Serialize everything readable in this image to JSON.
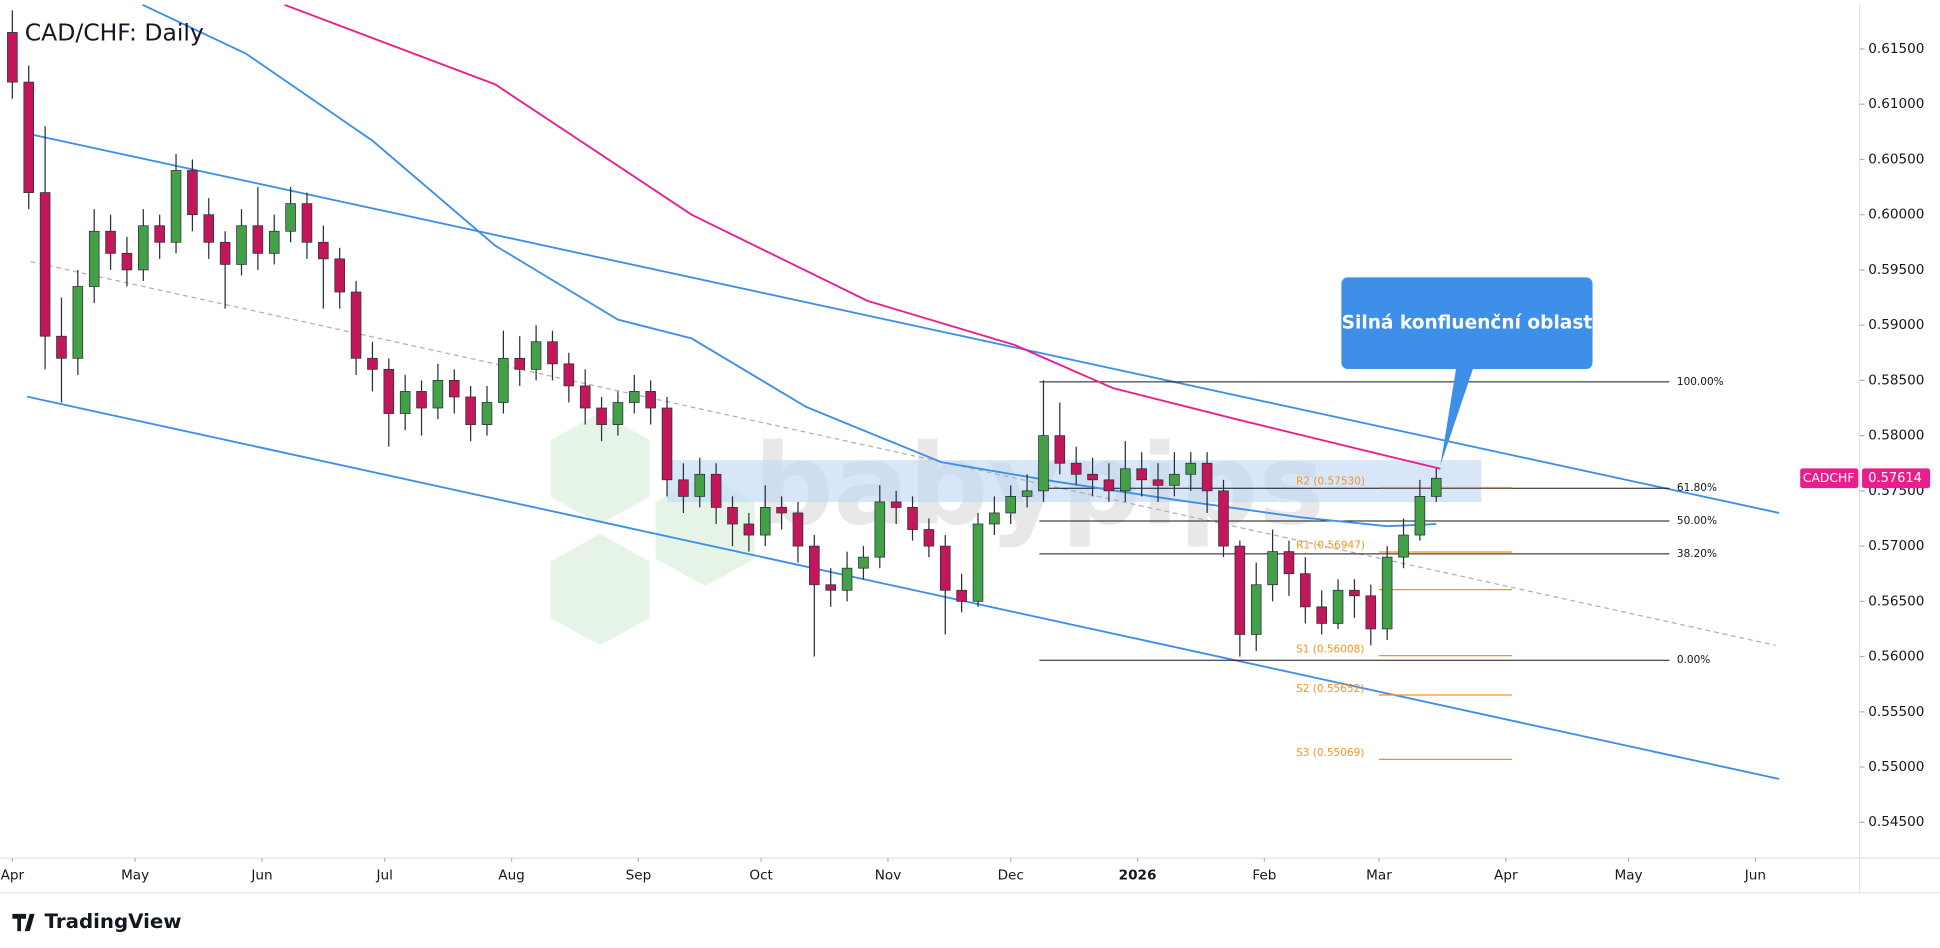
{
  "chart_data": {
    "type": "candlestick",
    "title": "CAD/CHF: Daily",
    "symbol": "CADCHF",
    "last_price": {
      "value": 0.57614,
      "label": "0.57614"
    },
    "x": [
      0,
      4,
      8,
      12,
      16,
      20,
      24,
      28,
      32,
      36,
      40,
      44,
      48,
      52,
      56,
      60,
      64,
      68,
      72,
      76,
      80,
      84,
      88,
      92,
      96,
      100,
      104,
      108,
      112,
      116,
      120,
      124,
      128,
      132,
      136,
      140,
      144,
      148,
      152,
      156,
      160,
      164,
      168,
      172,
      176,
      180,
      184,
      188,
      192,
      196,
      200,
      204,
      208,
      212,
      216,
      220,
      224,
      228,
      232,
      236,
      240,
      244,
      248,
      252,
      256,
      260,
      264,
      268,
      272,
      276,
      280,
      284,
      288,
      292,
      296,
      300,
      304,
      308,
      312,
      316,
      320,
      324,
      328,
      332,
      336,
      340,
      344,
      348
    ],
    "open": [
      0.6165,
      0.612,
      0.602,
      0.589,
      0.587,
      0.5935,
      0.5985,
      0.5965,
      0.595,
      0.599,
      0.5975,
      0.604,
      0.6,
      0.5975,
      0.5955,
      0.599,
      0.5965,
      0.5985,
      0.601,
      0.5975,
      0.596,
      0.593,
      0.587,
      0.586,
      0.582,
      0.584,
      0.5825,
      0.585,
      0.5835,
      0.581,
      0.583,
      0.587,
      0.586,
      0.5885,
      0.5865,
      0.5845,
      0.5825,
      0.581,
      0.583,
      0.584,
      0.5825,
      0.576,
      0.5745,
      0.5765,
      0.5735,
      0.572,
      0.571,
      0.5735,
      0.573,
      0.57,
      0.5665,
      0.566,
      0.568,
      0.569,
      0.574,
      0.5735,
      0.5715,
      0.57,
      0.566,
      0.565,
      0.572,
      0.573,
      0.5745,
      0.575,
      0.58,
      0.5775,
      0.5765,
      0.576,
      0.575,
      0.577,
      0.576,
      0.5755,
      0.5765,
      0.5775,
      0.575,
      0.57,
      0.562,
      0.5665,
      0.5695,
      0.5675,
      0.5645,
      0.563,
      0.566,
      0.5655,
      0.5625,
      0.569,
      0.571,
      0.5745
    ],
    "high": [
      0.6185,
      0.6135,
      0.608,
      0.5925,
      0.595,
      0.6005,
      0.6,
      0.598,
      0.6005,
      0.6,
      0.6055,
      0.605,
      0.6015,
      0.5985,
      0.6005,
      0.6025,
      0.6,
      0.6025,
      0.602,
      0.599,
      0.597,
      0.594,
      0.5885,
      0.587,
      0.5855,
      0.585,
      0.5865,
      0.586,
      0.5845,
      0.5845,
      0.5895,
      0.589,
      0.59,
      0.5895,
      0.5875,
      0.586,
      0.5835,
      0.584,
      0.5855,
      0.585,
      0.5835,
      0.5775,
      0.578,
      0.5775,
      0.5745,
      0.573,
      0.5755,
      0.5745,
      0.574,
      0.571,
      0.568,
      0.5695,
      0.57,
      0.5755,
      0.575,
      0.5745,
      0.5725,
      0.571,
      0.5675,
      0.573,
      0.5745,
      0.5755,
      0.5765,
      0.585,
      0.583,
      0.579,
      0.578,
      0.5775,
      0.5795,
      0.5785,
      0.5775,
      0.5785,
      0.5785,
      0.5785,
      0.576,
      0.5705,
      0.5685,
      0.5715,
      0.5705,
      0.569,
      0.566,
      0.567,
      0.567,
      0.5665,
      0.57,
      0.5725,
      0.576,
      0.577
    ],
    "low": [
      0.6105,
      0.6005,
      0.586,
      0.583,
      0.5855,
      0.592,
      0.595,
      0.5935,
      0.594,
      0.596,
      0.5965,
      0.5985,
      0.596,
      0.5915,
      0.5945,
      0.595,
      0.5955,
      0.5975,
      0.596,
      0.5915,
      0.5915,
      0.5855,
      0.584,
      0.579,
      0.5805,
      0.58,
      0.5815,
      0.582,
      0.5795,
      0.58,
      0.582,
      0.5845,
      0.585,
      0.585,
      0.583,
      0.581,
      0.5795,
      0.58,
      0.582,
      0.581,
      0.5745,
      0.573,
      0.5735,
      0.572,
      0.57,
      0.5695,
      0.57,
      0.5715,
      0.5685,
      0.56,
      0.5645,
      0.565,
      0.567,
      0.568,
      0.572,
      0.5705,
      0.569,
      0.562,
      0.564,
      0.5645,
      0.571,
      0.572,
      0.5735,
      0.574,
      0.5765,
      0.5755,
      0.5745,
      0.574,
      0.574,
      0.5745,
      0.574,
      0.5745,
      0.575,
      0.573,
      0.569,
      0.56,
      0.5605,
      0.565,
      0.5655,
      0.563,
      0.562,
      0.5625,
      0.5635,
      0.561,
      0.5615,
      0.568,
      0.5705,
      0.574
    ],
    "close": [
      0.612,
      0.602,
      0.589,
      0.587,
      0.5935,
      0.5985,
      0.5965,
      0.595,
      0.599,
      0.5975,
      0.604,
      0.6,
      0.5975,
      0.5955,
      0.599,
      0.5965,
      0.5985,
      0.601,
      0.5975,
      0.596,
      0.593,
      0.587,
      0.586,
      0.582,
      0.584,
      0.5825,
      0.585,
      0.5835,
      0.581,
      0.583,
      0.587,
      0.586,
      0.5885,
      0.5865,
      0.5845,
      0.5825,
      0.581,
      0.583,
      0.584,
      0.5825,
      0.576,
      0.5745,
      0.5765,
      0.5735,
      0.572,
      0.571,
      0.5735,
      0.573,
      0.57,
      0.5665,
      0.566,
      0.568,
      0.569,
      0.574,
      0.5735,
      0.5715,
      0.57,
      0.566,
      0.565,
      0.572,
      0.573,
      0.5745,
      0.575,
      0.58,
      0.5775,
      0.5765,
      0.576,
      0.575,
      0.577,
      0.576,
      0.5755,
      0.5765,
      0.5775,
      0.575,
      0.57,
      0.562,
      0.5665,
      0.5695,
      0.5675,
      0.5645,
      0.563,
      0.566,
      0.5655,
      0.5625,
      0.569,
      0.571,
      0.5745,
      0.57614
    ],
    "up_color": "#43a047",
    "down_color": "#c2185b",
    "xlim": [
      -3.024,
      451.46
    ],
    "ylim": [
      0.54175,
      0.61903
    ],
    "yticks": [
      {
        "value": 0.545,
        "label": "0.54500"
      },
      {
        "value": 0.55,
        "label": "0.55000"
      },
      {
        "value": 0.555,
        "label": "0.55500"
      },
      {
        "value": 0.56,
        "label": "0.56000"
      },
      {
        "value": 0.565,
        "label": "0.56500"
      },
      {
        "value": 0.57,
        "label": "0.57000"
      },
      {
        "value": 0.575,
        "label": "0.57500"
      },
      {
        "value": 0.58,
        "label": "0.58000"
      },
      {
        "value": 0.585,
        "label": "0.58500"
      },
      {
        "value": 0.59,
        "label": "0.59000"
      },
      {
        "value": 0.595,
        "label": "0.59500"
      },
      {
        "value": 0.6,
        "label": "0.60000"
      },
      {
        "value": 0.605,
        "label": "0.60500"
      },
      {
        "value": 0.61,
        "label": "0.61000"
      },
      {
        "value": 0.615,
        "label": "0.61500"
      }
    ],
    "xticks": [
      {
        "value": 0,
        "label": "Apr"
      },
      {
        "value": 30,
        "label": "May"
      },
      {
        "value": 61,
        "label": "Jun"
      },
      {
        "value": 91,
        "label": "Jul"
      },
      {
        "value": 122,
        "label": "Aug"
      },
      {
        "value": 153,
        "label": "Sep"
      },
      {
        "value": 183,
        "label": "Oct"
      },
      {
        "value": 214,
        "label": "Nov"
      },
      {
        "value": 244,
        "label": "Dec"
      },
      {
        "value": 275,
        "label": "2026"
      },
      {
        "value": 306,
        "label": "Feb"
      },
      {
        "value": 334,
        "label": "Mar"
      },
      {
        "value": 365,
        "label": "Apr"
      },
      {
        "value": 395,
        "label": "May"
      },
      {
        "value": 426,
        "label": "Jun"
      }
    ],
    "moving_averages": [
      {
        "color": "#e91e8c",
        "x": [
          66.5,
          118,
          166,
          209,
          245,
          269,
          299,
          330,
          349
        ],
        "values": [
          0.619,
          0.6118,
          0.6,
          0.5922,
          0.5882,
          0.5843,
          0.5815,
          0.5787,
          0.577
        ]
      },
      {
        "color": "#3d8fe8",
        "x": [
          31.8,
          57,
          88,
          118,
          148,
          166,
          194,
          227,
          254,
          284,
          315,
          336,
          348
        ],
        "values": [
          0.619,
          0.6146,
          0.6067,
          0.5972,
          0.5905,
          0.5888,
          0.5826,
          0.5776,
          0.5759,
          0.5742,
          0.5726,
          0.5718,
          0.572
        ]
      }
    ],
    "channel": [
      {
        "color": "#3d8fe8",
        "dashed": false,
        "x": [
          4.5,
          431.8
        ],
        "values": [
          0.60727,
          0.573
        ]
      },
      {
        "color": "#3d8fe8",
        "dashed": false,
        "x": [
          3.6,
          431.8
        ],
        "values": [
          0.58353,
          0.54892
        ]
      },
      {
        "color": "#b0b0b0",
        "dashed": true,
        "x": [
          4.5,
          430.9
        ],
        "values": [
          0.59574,
          0.56102
        ]
      }
    ],
    "zone": {
      "color": "#bcd7f5",
      "x": [
        160,
        359
      ],
      "values": [
        0.57398,
        0.57778
      ]
    },
    "fibonacci": {
      "x": [
        251,
        405
      ],
      "levels": [
        {
          "value": 0.58487,
          "label": "100.00%"
        },
        {
          "value": 0.57524,
          "label": "61.80%"
        },
        {
          "value": 0.57227,
          "label": "50.00%"
        },
        {
          "value": 0.5693,
          "label": "38.20%"
        },
        {
          "value": 0.55967,
          "label": "0.00%"
        }
      ]
    },
    "pivots": {
      "color": "#f7931a",
      "x": [
        334,
        366.5
      ],
      "levels": [
        {
          "value": 0.5753,
          "label": "R2 (0.57530)"
        },
        {
          "value": 0.56947,
          "label": "R1 (0.56947)"
        },
        {
          "value": 0.56606
        },
        {
          "value": 0.56008,
          "label": "S1 (0.56008)"
        },
        {
          "value": 0.55652,
          "label": "S2 (0.55652)"
        },
        {
          "value": 0.55069,
          "label": "S3 (0.55069)"
        }
      ]
    },
    "callout": {
      "text": "Silná konfluenční oblast",
      "x": 349,
      "value": 0.5773,
      "color": "#3d8fe8"
    },
    "watermark": "babypips",
    "brand": "TradingView"
  }
}
